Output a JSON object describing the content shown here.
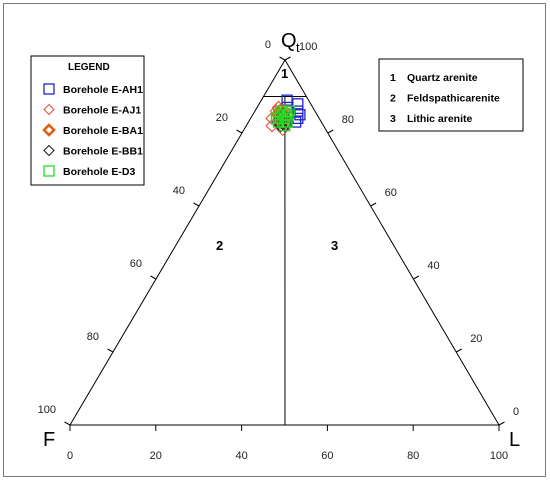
{
  "chart_data": {
    "type": "ternary",
    "vertices": {
      "top": {
        "label": "Q",
        "subscript": "t"
      },
      "left": {
        "label": "F"
      },
      "right": {
        "label": "L"
      }
    },
    "bottom_ticks": [
      "0",
      "20",
      "40",
      "60",
      "80",
      "100"
    ],
    "left_ticks": [
      "100",
      "80",
      "60",
      "40",
      "20",
      "0"
    ],
    "right_ticks": [
      "100",
      "80",
      "60",
      "40",
      "20",
      "0"
    ],
    "fields": [
      {
        "id": "1",
        "name": "Quartz arenite"
      },
      {
        "id": "2",
        "name": "Feldspathicarenite"
      },
      {
        "id": "3",
        "name": "Lithic arenite"
      }
    ],
    "legend": {
      "title": "LEGEND",
      "entries": [
        {
          "name": "Borehole E-AH1",
          "marker": "square",
          "color": "#2323c8"
        },
        {
          "name": "Borehole E-AJ1",
          "marker": "diamond",
          "color": "#e8504a"
        },
        {
          "name": "Borehole E-BA1",
          "marker": "diamond-bold",
          "color": "#e06010"
        },
        {
          "name": "Borehole E-BB1",
          "marker": "diamond",
          "color": "#222222"
        },
        {
          "name": "Borehole E-D3",
          "marker": "square",
          "color": "#22dd22"
        }
      ]
    },
    "series": [
      {
        "name": "Borehole E-AH1",
        "points": [
          [
            89,
            5,
            6
          ],
          [
            86,
            6,
            8
          ],
          [
            84,
            5,
            11
          ],
          [
            85,
            4,
            11
          ],
          [
            87,
            6,
            7
          ],
          [
            83,
            6,
            11
          ],
          [
            88,
            3,
            9
          ],
          [
            86,
            4,
            10
          ]
        ]
      },
      {
        "name": "Borehole E-AJ1",
        "points": [
          [
            84,
            11,
            5
          ],
          [
            82,
            12,
            6
          ],
          [
            86,
            9,
            5
          ],
          [
            83,
            8,
            9
          ],
          [
            85,
            7,
            8
          ],
          [
            81,
            10,
            9
          ],
          [
            87,
            8,
            5
          ],
          [
            84,
            9,
            7
          ],
          [
            86,
            7,
            7
          ]
        ]
      },
      {
        "name": "Borehole E-BA1",
        "points": [
          [
            85,
            9,
            6
          ],
          [
            83,
            9,
            8
          ],
          [
            86,
            8,
            6
          ],
          [
            84,
            8,
            8
          ]
        ]
      },
      {
        "name": "Borehole E-BB1",
        "points": [
          [
            82,
            9,
            9
          ],
          [
            83,
            10,
            7
          ],
          [
            84,
            9,
            7
          ],
          [
            82,
            10,
            8
          ],
          [
            85,
            8,
            7
          ],
          [
            83,
            8,
            9
          ]
        ]
      },
      {
        "name": "Borehole E-D3",
        "points": [
          [
            84,
            10,
            6
          ],
          [
            85,
            9,
            6
          ],
          [
            86,
            8,
            6
          ],
          [
            83,
            9,
            8
          ],
          [
            84,
            8,
            8
          ],
          [
            85,
            7,
            8
          ],
          [
            86,
            6,
            8
          ],
          [
            83,
            10,
            7
          ],
          [
            84,
            9,
            7
          ],
          [
            82,
            9,
            9
          ],
          [
            85,
            8,
            7
          ],
          [
            86,
            7,
            7
          ],
          [
            83,
            8,
            9
          ]
        ]
      }
    ]
  },
  "colors": {
    "axis": "#000000"
  }
}
